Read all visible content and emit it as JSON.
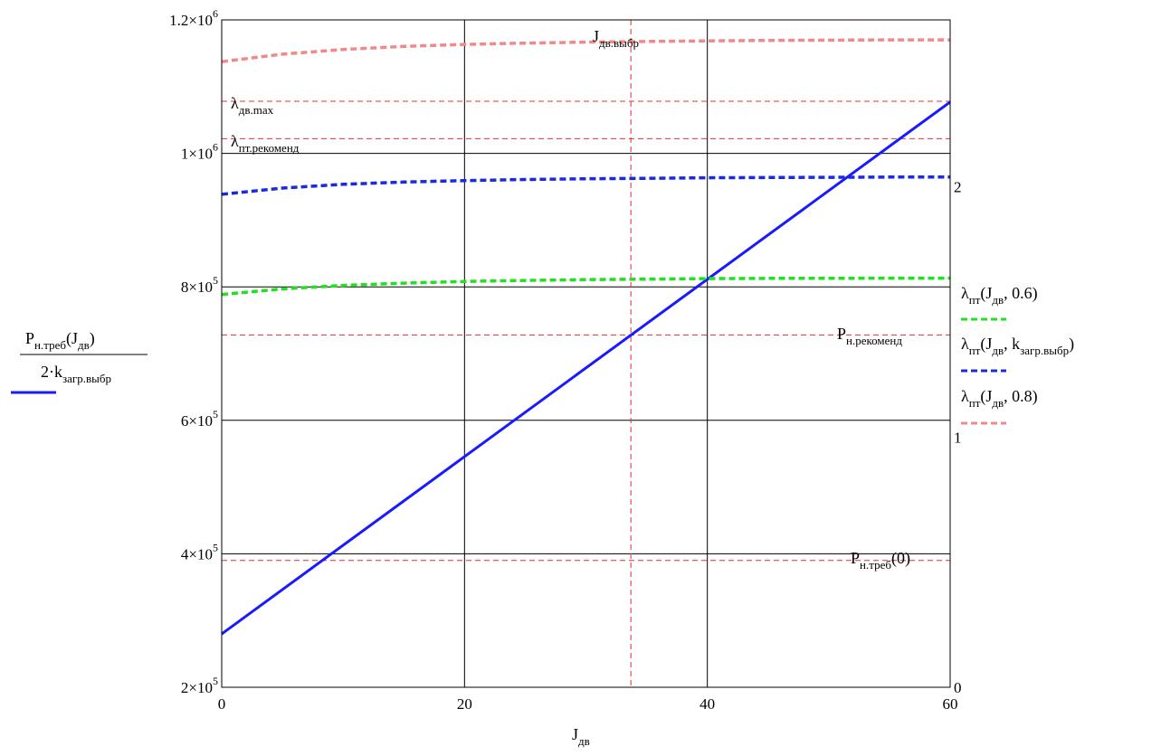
{
  "chart_data": {
    "type": "line",
    "x": {
      "label": "J",
      "label_sub": "дв",
      "min": 0,
      "max": 60,
      "ticks": [
        0,
        20,
        40,
        60
      ],
      "tick_labels": [
        "0",
        "20",
        "40",
        "60"
      ]
    },
    "y_left": {
      "label_numerator": "P",
      "label_numerator_sub": "н.треб",
      "label_numerator_arg": "J",
      "label_numerator_arg_sub": "дв",
      "label_denominator": "2·k",
      "label_denominator_sub": "загр.выбр",
      "min": 200000,
      "max": 1200000,
      "ticks": [
        200000,
        400000,
        600000,
        800000,
        1000000,
        1200000
      ],
      "tick_labels": [
        {
          "mant": "2×10",
          "exp": "5"
        },
        {
          "mant": "4×10",
          "exp": "5"
        },
        {
          "mant": "6×10",
          "exp": "5"
        },
        {
          "mant": "8×10",
          "exp": "5"
        },
        {
          "mant": "1×10",
          "exp": "6"
        },
        {
          "mant": "1.2×10",
          "exp": "6"
        }
      ]
    },
    "y_right": {
      "min": 0,
      "max": 2.667,
      "ticks": [
        0,
        1,
        2
      ],
      "tick_labels": [
        "0",
        "1",
        "2"
      ]
    },
    "grid": true,
    "series": [
      {
        "axis": "left",
        "style": "solid",
        "color": "#1a1aff",
        "x": [
          0,
          60
        ],
        "y": [
          280000,
          1077000
        ]
      },
      {
        "axis": "right",
        "style": "dashed",
        "color": "#22e022",
        "x": [
          0,
          5,
          10,
          15,
          20,
          25,
          30,
          35,
          40,
          45,
          50,
          55,
          60
        ],
        "y": [
          1.57,
          1.592,
          1.606,
          1.615,
          1.622,
          1.626,
          1.629,
          1.631,
          1.633,
          1.634,
          1.634,
          1.635,
          1.635
        ]
      },
      {
        "axis": "right",
        "style": "dashed",
        "color": "#1a2adc",
        "x": [
          0,
          5,
          10,
          15,
          20,
          25,
          30,
          35,
          40,
          45,
          50,
          55,
          60
        ],
        "y": [
          1.97,
          1.995,
          2.01,
          2.019,
          2.025,
          2.029,
          2.032,
          2.034,
          2.036,
          2.037,
          2.038,
          2.039,
          2.039
        ]
      },
      {
        "axis": "right",
        "style": "dashed",
        "color": "#f08a8a",
        "x": [
          0,
          5,
          10,
          15,
          20,
          25,
          30,
          35,
          40,
          45,
          50,
          55,
          60
        ],
        "y": [
          2.5,
          2.53,
          2.549,
          2.561,
          2.569,
          2.574,
          2.578,
          2.581,
          2.583,
          2.585,
          2.586,
          2.587,
          2.587
        ]
      }
    ],
    "reference_lines": {
      "vertical_x": 33.7,
      "horizontal_left": [
        1078000,
        1022000,
        728000,
        390000
      ],
      "color": "#e03030"
    },
    "annotations": {
      "j_vybr": {
        "main": "J",
        "sub": "дв.выбр"
      },
      "lambda_max": {
        "main": "λ",
        "sub": "дв.max"
      },
      "lambda_rec": {
        "main": "λ",
        "sub": "пт.рекоменд"
      },
      "p_rec": {
        "main": "P",
        "sub": "н.рекоменд"
      },
      "p_treb0": {
        "main": "P",
        "sub": "н.треб",
        "arg": "(0)"
      }
    },
    "legend": {
      "placement": "right",
      "entries": [
        {
          "main": "λ",
          "sub": "пт",
          "args_pre": "(J",
          "args_sub": "дв",
          "args_post": ", 0.6)",
          "color": "#22e022"
        },
        {
          "main": "λ",
          "sub": "пт",
          "args_pre": "(J",
          "args_sub": "дв",
          "args_mid": ", k",
          "args_sub2": "загр.выбр",
          "args_post": ")",
          "color": "#1a2adc"
        },
        {
          "main": "λ",
          "sub": "пт",
          "args_pre": "(J",
          "args_sub": "дв",
          "args_post": ", 0.8)",
          "color": "#f08a8a"
        }
      ]
    }
  }
}
